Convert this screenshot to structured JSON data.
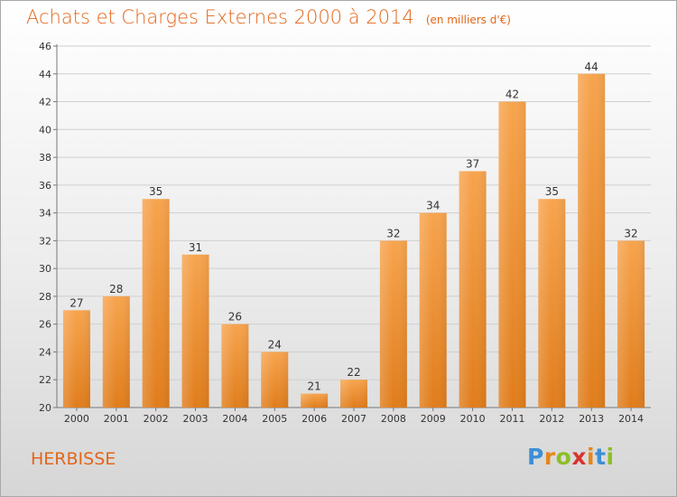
{
  "header": {
    "title": "Achats et Charges Externes 2000 à 2014",
    "subtitle": "(en milliers d'€)"
  },
  "footer": {
    "commune": "HERBISSE",
    "brand": [
      "P",
      "r",
      "o",
      "x",
      "i",
      "t",
      "i"
    ],
    "brand_colors": [
      "#3d8fd6",
      "#e6861d",
      "#8cbf26",
      "#d8342e",
      "#e6861d",
      "#3d8fd6",
      "#8cbf26"
    ]
  },
  "chart_data": {
    "type": "bar",
    "title": "Achats et Charges Externes 2000 à 2014",
    "subtitle": "(en milliers d'€)",
    "categories": [
      "2000",
      "2001",
      "2002",
      "2003",
      "2004",
      "2005",
      "2006",
      "2007",
      "2008",
      "2009",
      "2010",
      "2011",
      "2012",
      "2013",
      "2014"
    ],
    "values": [
      27,
      28,
      35,
      31,
      26,
      24,
      21,
      22,
      32,
      34,
      37,
      42,
      35,
      44,
      32
    ],
    "ylim": [
      20,
      46
    ],
    "yticks": [
      20,
      22,
      24,
      26,
      28,
      30,
      32,
      34,
      36,
      38,
      40,
      42,
      44,
      46
    ],
    "grid": true,
    "colors": {
      "bar_light": "#f7a44e",
      "bar_dark": "#e07d1c",
      "axis": "#777777",
      "grid": "#cfcfcf"
    }
  }
}
